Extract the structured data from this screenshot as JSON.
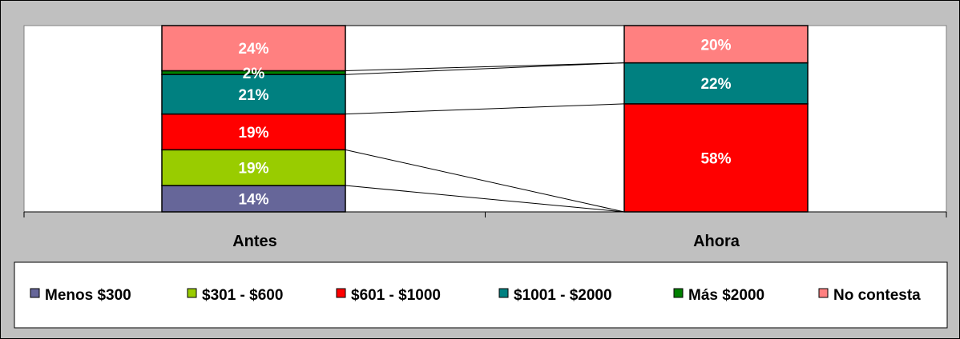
{
  "chart_data": {
    "type": "bar",
    "stacked": true,
    "normalized": true,
    "categories": [
      "Antes",
      "Ahora"
    ],
    "series": [
      {
        "name": "Menos $300",
        "values": [
          14,
          0
        ],
        "color": "#666699"
      },
      {
        "name": "$301 - $600",
        "values": [
          19,
          0
        ],
        "color": "#99cc00"
      },
      {
        "name": "$601 - $1000",
        "values": [
          19,
          58
        ],
        "color": "#ff0000"
      },
      {
        "name": "$1001 - $2000",
        "values": [
          21,
          22
        ],
        "color": "#008080"
      },
      {
        "name": "Más $2000",
        "values": [
          2,
          0
        ],
        "color": "#008000"
      },
      {
        "name": "No contesta",
        "values": [
          24,
          20
        ],
        "color": "#ff8080"
      }
    ],
    "data_labels": [
      [
        "14%",
        "19%",
        "19%",
        "21%",
        "2%",
        "24%"
      ],
      [
        "",
        "",
        "58%",
        "22%",
        "",
        "20%"
      ]
    ],
    "series_lines": true,
    "legend_position": "bottom",
    "plot_background": "#ffffff",
    "chart_background": "#c0c0c0"
  }
}
